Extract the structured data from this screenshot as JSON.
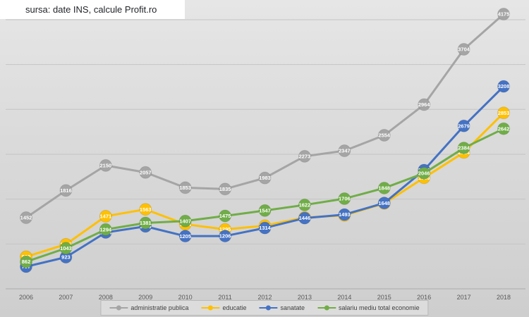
{
  "title": "sursa: date INS, calcule Profit.ro",
  "chart_data": {
    "type": "line",
    "title": "",
    "xlabel": "",
    "ylabel": "",
    "x": [
      2006,
      2007,
      2008,
      2009,
      2010,
      2011,
      2012,
      2013,
      2014,
      2015,
      2016,
      2017,
      2018
    ],
    "series": [
      {
        "name": "administratie publica",
        "color": "#a5a5a5",
        "values": [
          1452,
          1816,
          2150,
          2057,
          1853,
          1835,
          1983,
          2273,
          2347,
          2554,
          2964,
          3704,
          4175
        ]
      },
      {
        "name": "educatie",
        "color": "#ffc000",
        "values": [
          929,
          1095,
          1471,
          1563,
          1364,
          1295,
          1344,
          1454,
          1482,
          1643,
          1986,
          2324,
          2853
        ]
      },
      {
        "name": "sanatate",
        "color": "#4472c4",
        "values": [
          797,
          923,
          1254,
          1335,
          1205,
          1206,
          1314,
          1446,
          1493,
          1648,
          2088,
          2679,
          3208
        ]
      },
      {
        "name": "salariu mediu total economie",
        "color": "#70ad47",
        "values": [
          862,
          1043,
          1294,
          1381,
          1407,
          1475,
          1547,
          1622,
          1706,
          1848,
          2046,
          2384,
          2642
        ]
      }
    ],
    "ylim": [
      500,
      4400
    ],
    "gridline_values": [
      1100,
      1700,
      2300,
      2900,
      3500,
      4100
    ],
    "grid": true,
    "data_labels": true,
    "legend_position": "bottom",
    "colors": {
      "gridline": "#c4c4c4",
      "axis": "#b2b2b2",
      "tick_label": "#595959",
      "data_label": "#ffffff"
    }
  }
}
